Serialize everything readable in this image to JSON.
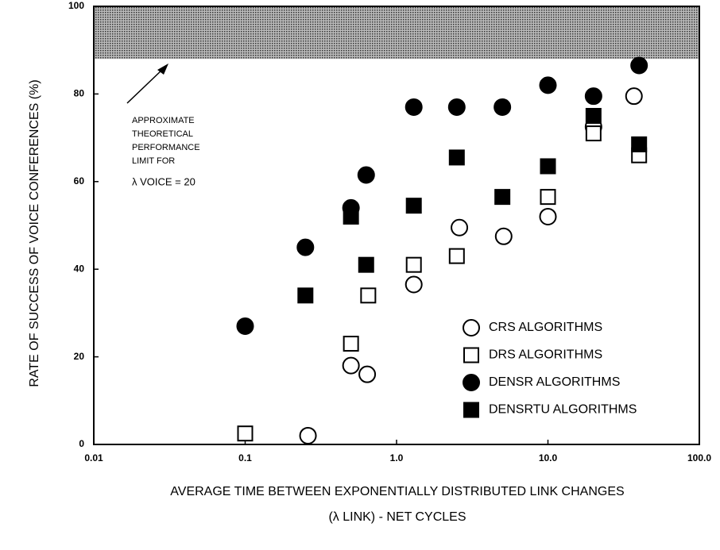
{
  "chart_data": {
    "type": "scatter",
    "y_label": "RATE OF SUCCESS OF VOICE CONFERENCES (%)",
    "x_label": [
      "AVERAGE TIME BETWEEN EXPONENTIALLY DISTRIBUTED LINK CHANGES",
      "(λ LINK)  - NET CYCLES"
    ],
    "annotation": [
      "APPROXIMATE",
      "THEORETICAL",
      "PERFORMANCE",
      "LIMIT FOR",
      "λ VOICE =  20"
    ],
    "limit_band": [
      88,
      100
    ],
    "xlog": true,
    "xlim": [
      0.01,
      100
    ],
    "xticks": [
      0.01,
      0.1,
      {
        "value": 1,
        "label": "1.0"
      },
      {
        "value": 10,
        "label": "10.0"
      },
      {
        "value": 100,
        "label": "100.0"
      }
    ],
    "ylim": [
      0,
      100
    ],
    "yticks": [
      0,
      20,
      40,
      60,
      80,
      100
    ],
    "series": [
      {
        "name": "CRS ALGORITHMS",
        "marker": "circle",
        "filled": false,
        "color": "#000000",
        "x": [
          0.26,
          0.5,
          0.64,
          1.3,
          2.6,
          5.1,
          10,
          20,
          37
        ],
        "values": [
          2,
          18,
          16,
          36.5,
          49.5,
          47.5,
          52,
          72.5,
          79.5
        ]
      },
      {
        "name": "DRS ALGORITHMS",
        "marker": "square",
        "filled": false,
        "color": "#000000",
        "x": [
          0.1,
          0.5,
          0.65,
          1.3,
          2.5,
          10,
          20,
          40
        ],
        "values": [
          2.5,
          23,
          34,
          41,
          43,
          56.5,
          71,
          66
        ]
      },
      {
        "name": "DENSR ALGORITHMS",
        "marker": "circle",
        "filled": true,
        "color": "#000000",
        "x": [
          0.1,
          0.25,
          0.5,
          0.63,
          1.3,
          2.5,
          5,
          10,
          20,
          40
        ],
        "values": [
          27,
          45,
          54,
          61.5,
          77,
          77,
          77,
          82,
          79.5,
          86.5
        ]
      },
      {
        "name": "DENSRTU ALGORITHMS",
        "marker": "square",
        "filled": true,
        "color": "#000000",
        "x": [
          0.25,
          0.5,
          0.63,
          1.3,
          2.5,
          5,
          10,
          20,
          40
        ],
        "values": [
          34,
          52,
          41,
          54.5,
          65.5,
          56.5,
          63.5,
          75,
          68.5
        ]
      }
    ]
  }
}
